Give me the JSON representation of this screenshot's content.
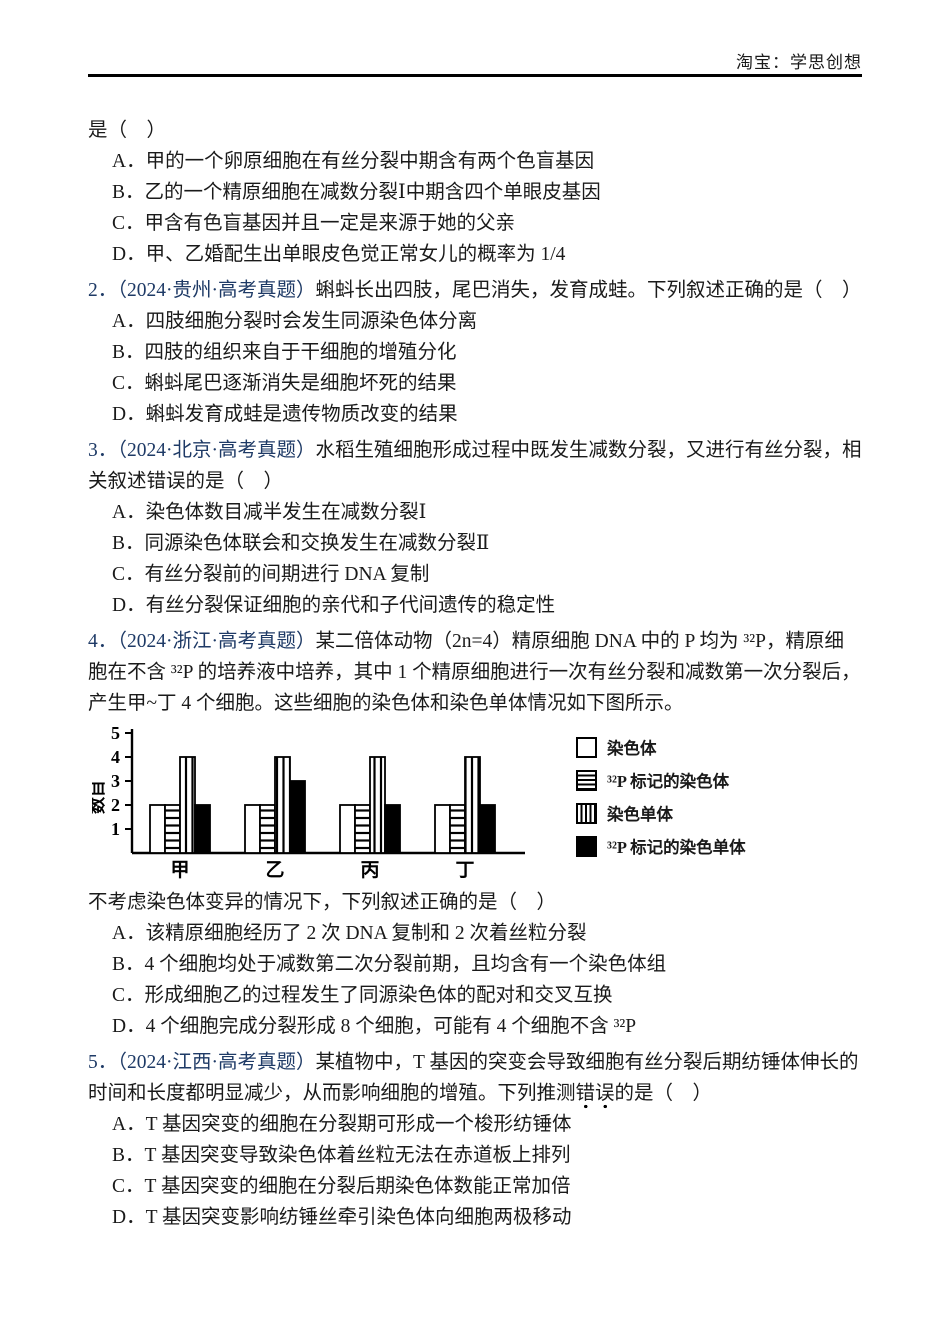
{
  "header": {
    "brand": "淘宝：学思创想"
  },
  "q1_cont": {
    "lead": "是（　）",
    "options": [
      "A．甲的一个卵原细胞在有丝分裂中期含有两个色盲基因",
      "B．乙的一个精原细胞在减数分裂Ⅰ中期含四个单眼皮基因",
      "C．甲含有色盲基因并且一定是来源于她的父亲",
      "D．甲、乙婚配生出单眼皮色觉正常女儿的概率为 1/4"
    ]
  },
  "questions": [
    {
      "number": "2．",
      "source": "（2024·贵州·高考真题）",
      "stem": "蝌蚪长出四肢，尾巴消失，发育成蛙。下列叙述正确的是（　）",
      "options": [
        "A．四肢细胞分裂时会发生同源染色体分离",
        "B．四肢的组织来自于干细胞的增殖分化",
        "C．蝌蚪尾巴逐渐消失是细胞坏死的结果",
        "D．蝌蚪发育成蛙是遗传物质改变的结果"
      ]
    },
    {
      "number": "3．",
      "source": "（2024·北京·高考真题）",
      "stem": "水稻生殖细胞形成过程中既发生减数分裂，又进行有丝分裂，相关叙述错误的是（　）",
      "options": [
        "A．染色体数目减半发生在减数分裂Ⅰ",
        "B．同源染色体联会和交换发生在减数分裂Ⅱ",
        "C．有丝分裂前的间期进行 DNA 复制",
        "D．有丝分裂保证细胞的亲代和子代间遗传的稳定性"
      ]
    },
    {
      "number": "4．",
      "source": "（2024·浙江·高考真题）",
      "stem": "某二倍体动物（2n=4）精原细胞 DNA 中的 P 均为 ³²P，精原细胞在不含 ³²P 的培养液中培养，其中 1 个精原细胞进行一次有丝分裂和减数第一次分裂后，产生甲~丁 4 个细胞。这些细胞的染色体和染色单体情况如下图所示。",
      "post_figure": "不考虑染色体变异的情况下，下列叙述正确的是（　）",
      "options": [
        "A．该精原细胞经历了 2 次 DNA 复制和 2 次着丝粒分裂",
        "B．4 个细胞均处于减数第二次分裂前期，且均含有一个染色体组",
        "C．形成细胞乙的过程发生了同源染色体的配对和交叉互换",
        "D．4 个细胞完成分裂形成 8 个细胞，可能有 4 个细胞不含 ³²P"
      ]
    },
    {
      "number": "5．",
      "source": "（2024·江西·高考真题）",
      "stem_pre": "某植物中，T 基因的突变会导致细胞有丝分裂后期纺锤体伸长的时间和长度都明显减少，从而影响细胞的增殖。下列推测",
      "stem_emph": "错误",
      "stem_post": "的是（　）",
      "options": [
        "A．T 基因突变的细胞在分裂期可形成一个梭形纺锤体",
        "B．T 基因突变导致染色体着丝粒无法在赤道板上排列",
        "C．T 基因突变的细胞在分裂后期染色体数能正常加倍",
        "D．T 基因突变影响纺锤丝牵引染色体向细胞两极移动"
      ]
    }
  ],
  "chart_data": {
    "type": "bar",
    "categories": [
      "甲",
      "乙",
      "丙",
      "丁"
    ],
    "series": [
      {
        "name": "染色体",
        "pattern": "plain",
        "values": [
          2,
          2,
          2,
          2
        ]
      },
      {
        "name": "³²P 标记的染色体",
        "pattern": "hstripe",
        "values": [
          2,
          2,
          2,
          2
        ]
      },
      {
        "name": "染色单体",
        "pattern": "vstripe",
        "values": [
          4,
          4,
          4,
          4
        ]
      },
      {
        "name": "³²P 标记的染色单体",
        "pattern": "solid",
        "values": [
          2,
          3,
          2,
          2
        ]
      }
    ],
    "title": "",
    "xlabel": "",
    "ylabel": "数目",
    "yticks": [
      1,
      2,
      3,
      4,
      5
    ],
    "ylim": [
      0,
      5
    ],
    "grid": false,
    "legend_position": "right"
  }
}
